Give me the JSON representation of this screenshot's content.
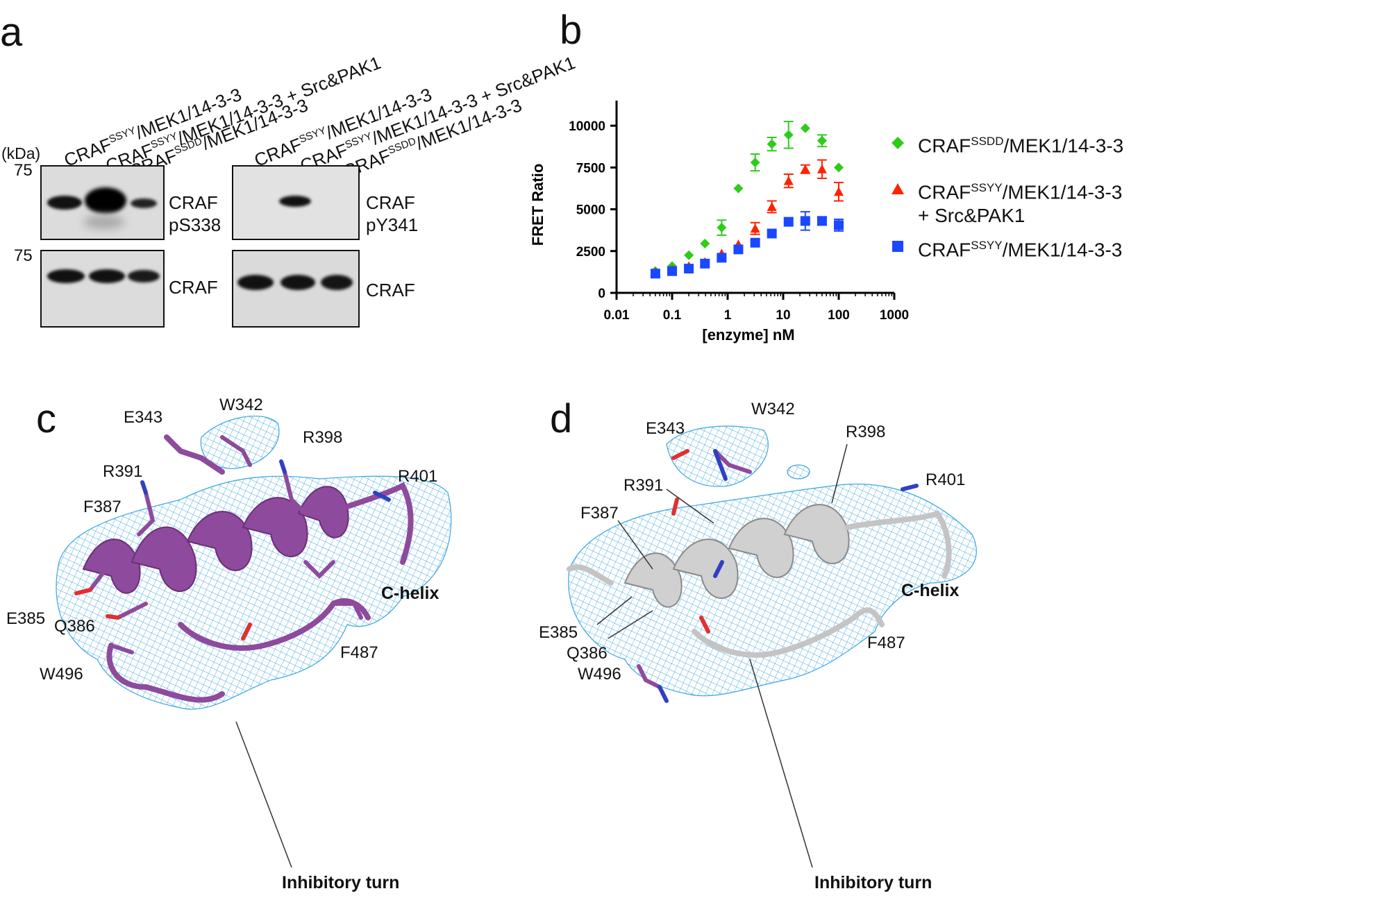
{
  "panels": {
    "a": "a",
    "b": "b",
    "c": "c",
    "d": "d"
  },
  "panel_a": {
    "kda_label": "(kDa)",
    "lanes_left": [
      {
        "pre": "CRAF",
        "sup": "SSYY",
        "post": "/MEK1/14-3-3"
      },
      {
        "pre": "CRAF",
        "sup": "SSYY",
        "post": "/MEK1/14-3-3 + Src&PAK1"
      },
      {
        "pre": "CRAF",
        "sup": "SSDD",
        "post": "/MEK1/14-3-3"
      }
    ],
    "lanes_right": [
      {
        "pre": "CRAF",
        "sup": "SSYY",
        "post": "/MEK1/14-3-3"
      },
      {
        "pre": "CRAF",
        "sup": "SSYY",
        "post": "/MEK1/14-3-3 + Src&PAK1"
      },
      {
        "pre": "CRAF",
        "sup": "SSDD",
        "post": "/MEK1/14-3-3"
      }
    ],
    "mw_top": "75",
    "mw_bottom": "75",
    "blot_labels": {
      "top_left_1": "CRAF",
      "top_left_2": "pS338",
      "bottom_left": "CRAF",
      "top_right_1": "CRAF",
      "top_right_2": "pY341",
      "bottom_right": "CRAF"
    }
  },
  "chart_data": {
    "type": "scatter",
    "title": "",
    "xlabel": "[enzyme] nM",
    "ylabel": "FRET Ratio",
    "xscale": "log",
    "xlim": [
      0.01,
      1000
    ],
    "ylim": [
      0,
      11500
    ],
    "xticks": [
      "0.01",
      "0.1",
      "1",
      "10",
      "100",
      "1000"
    ],
    "yticks": [
      "0",
      "2500",
      "5000",
      "7500",
      "10000"
    ],
    "legend_position": "right",
    "series": [
      {
        "name_pre": "CRAF",
        "name_sup": "SSDD",
        "name_post": "/MEK1/14-3-3",
        "name_line2": "",
        "color": "#2ecc1a",
        "marker": "diamond",
        "x": [
          0.05,
          0.1,
          0.2,
          0.39,
          0.78,
          1.56,
          3.13,
          6.25,
          12.5,
          25,
          50,
          100
        ],
        "y": [
          1300,
          1600,
          2250,
          2950,
          3900,
          6250,
          7800,
          8900,
          9450,
          9850,
          9100,
          7500
        ],
        "err": [
          0,
          0,
          0,
          0,
          450,
          0,
          500,
          400,
          800,
          0,
          350,
          0
        ]
      },
      {
        "name_pre": "CRAF",
        "name_sup": "SSYY",
        "name_post": "/MEK1/14-3-3",
        "name_line2": "+ Src&PAK1",
        "color": "#ff2200",
        "marker": "triangle",
        "x": [
          0.05,
          0.1,
          0.2,
          0.39,
          0.78,
          1.56,
          3.13,
          6.25,
          12.5,
          25,
          50,
          100
        ],
        "y": [
          1250,
          1400,
          1600,
          1850,
          2350,
          2900,
          3850,
          5150,
          6700,
          7400,
          7400,
          6050
        ],
        "err": [
          0,
          0,
          0,
          0,
          0,
          0,
          350,
          350,
          400,
          250,
          550,
          550
        ]
      },
      {
        "name_pre": "CRAF",
        "name_sup": "SSYY",
        "name_post": "/MEK1/14-3-3",
        "name_line2": "",
        "color": "#1a47ff",
        "marker": "square",
        "x": [
          0.05,
          0.1,
          0.2,
          0.39,
          0.78,
          1.56,
          3.13,
          6.25,
          12.5,
          25,
          50,
          100
        ],
        "y": [
          1150,
          1300,
          1450,
          1750,
          2100,
          2600,
          3000,
          3550,
          4250,
          4300,
          4300,
          4050
        ],
        "err": [
          0,
          0,
          0,
          0,
          0,
          0,
          0,
          0,
          0,
          550,
          250,
          350
        ]
      }
    ]
  },
  "panel_c": {
    "labels": [
      "W342",
      "E343",
      "R398",
      "R391",
      "R401",
      "F387",
      "E385",
      "Q386",
      "W496",
      "F487"
    ],
    "c_helix": "C-helix",
    "inhibitory_turn": "Inhibitory turn"
  },
  "panel_d": {
    "labels": [
      "W342",
      "E343",
      "R398",
      "R401",
      "R391",
      "F387",
      "E385",
      "Q386",
      "W496",
      "F487"
    ],
    "c_helix": "C-helix",
    "inhibitory_turn": "Inhibitory turn"
  },
  "colors": {
    "mesh": "#3aa5df",
    "purple": "#8e4a9c",
    "grey": "#c8c8c8",
    "oxygen": "#e03030",
    "nitrogen": "#3040c0"
  }
}
